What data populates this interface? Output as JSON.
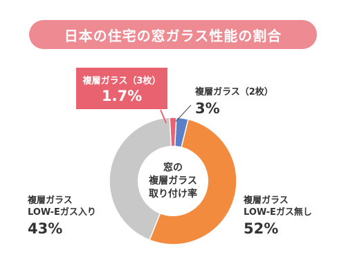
{
  "title": "日本の住宅の窓ガラス性能の割合",
  "center_label": [
    "窓の",
    "複層ガラス",
    "取り付け率"
  ],
  "colors": {
    "title_bg": "#ee8a91",
    "callout_bg": "#e8636f",
    "slice_3x": "#e8636f",
    "slice_2x": "#5b80c7",
    "slice_lowe_none": "#f28b3e",
    "slice_lowe_with": "#c8c8c8"
  },
  "labels": {
    "triple": {
      "name": "複層ガラス（3枚）",
      "pct": "1.7%"
    },
    "double": {
      "name": "複層ガラス（2枚）",
      "pct": "3%"
    },
    "lowe_none": {
      "name1": "複層ガラス",
      "name2": "LOW-Eガス無し",
      "pct": "52%"
    },
    "lowe_with": {
      "name1": "複層ガラス",
      "name2": "LOW-Eガス入り",
      "pct": "43%"
    }
  },
  "chart_data": {
    "type": "pie",
    "title": "日本の住宅の窓ガラス性能の割合",
    "slices": [
      {
        "label": "複層ガラス（3枚）",
        "value": 1.7,
        "color": "#e8636f"
      },
      {
        "label": "複層ガラス（2枚）",
        "value": 3,
        "color": "#5b80c7"
      },
      {
        "label": "複層ガラス LOW-Eガス無し",
        "value": 52,
        "color": "#f28b3e"
      },
      {
        "label": "複層ガラス LOW-Eガス入り",
        "value": 43,
        "color": "#c8c8c8"
      }
    ]
  }
}
